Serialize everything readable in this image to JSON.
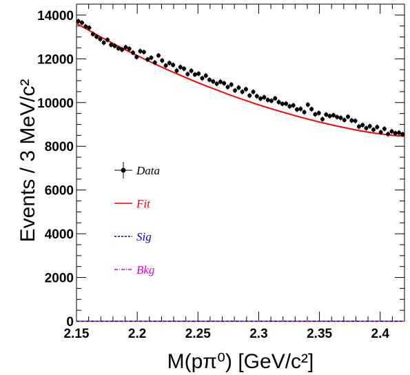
{
  "chart_data": {
    "type": "scatter",
    "xlabel": "M(pπ⁰) [GeV/c²]",
    "ylabel": "Events / 3 MeV/c²",
    "xlim": [
      2.15,
      2.42
    ],
    "ylim": [
      0,
      14500
    ],
    "x_ticks": [
      "2.15",
      "2.2",
      "2.25",
      "2.3",
      "2.35",
      "2.4"
    ],
    "y_ticks": [
      "0",
      "2000",
      "4000",
      "6000",
      "8000",
      "10000",
      "12000",
      "14000"
    ],
    "grid": false,
    "legend_position": "left-middle",
    "legend": [
      {
        "label": "Data",
        "style": "points-with-errors",
        "color": "#000000"
      },
      {
        "label": "Fit",
        "style": "solid-line",
        "color": "#ff0000"
      },
      {
        "label": "Sig",
        "style": "dashed-line",
        "color": "#0000cc"
      },
      {
        "label": "Bkg",
        "style": "dash-dot-line",
        "color": "#dd00dd"
      }
    ],
    "series": [
      {
        "name": "Data",
        "x": [
          2.1515,
          2.1545,
          2.1575,
          2.1605,
          2.1635,
          2.1665,
          2.1695,
          2.1725,
          2.1755,
          2.1785,
          2.1815,
          2.1845,
          2.1875,
          2.1905,
          2.1935,
          2.1965,
          2.1995,
          2.2025,
          2.2055,
          2.2085,
          2.2115,
          2.2145,
          2.2175,
          2.2205,
          2.2235,
          2.2265,
          2.2295,
          2.2325,
          2.2355,
          2.2385,
          2.2415,
          2.2445,
          2.2475,
          2.2505,
          2.2535,
          2.2565,
          2.2595,
          2.2625,
          2.2655,
          2.2685,
          2.2715,
          2.2745,
          2.2775,
          2.2805,
          2.2835,
          2.2865,
          2.2895,
          2.2925,
          2.2955,
          2.2985,
          2.3015,
          2.3045,
          2.3075,
          2.3105,
          2.3135,
          2.3165,
          2.3195,
          2.3225,
          2.3255,
          2.3285,
          2.3315,
          2.3345,
          2.3375,
          2.3405,
          2.3435,
          2.3465,
          2.3495,
          2.3525,
          2.3555,
          2.3585,
          2.3615,
          2.3645,
          2.3675,
          2.3705,
          2.3735,
          2.3765,
          2.3795,
          2.3825,
          2.3855,
          2.3885,
          2.3915,
          2.3945,
          2.3975,
          2.4005,
          2.4035,
          2.4065,
          2.4095,
          2.4125,
          2.4155,
          2.4185
        ],
        "y": [
          13720,
          13650,
          13480,
          13420,
          13130,
          13010,
          12900,
          12740,
          12870,
          12640,
          12590,
          12480,
          12420,
          12530,
          12460,
          12280,
          12080,
          12350,
          12310,
          11970,
          12050,
          11830,
          12150,
          11920,
          11690,
          11810,
          11720,
          11460,
          11620,
          11550,
          11300,
          11450,
          11280,
          11320,
          11110,
          11230,
          11040,
          10960,
          10860,
          10950,
          10880,
          10710,
          10820,
          10550,
          10680,
          10490,
          10610,
          10320,
          10490,
          10290,
          10180,
          10240,
          10120,
          10080,
          10190,
          10020,
          9940,
          9950,
          9830,
          9870,
          9680,
          9710,
          9560,
          9900,
          9700,
          9460,
          9520,
          9240,
          9450,
          9380,
          9420,
          9340,
          9300,
          9200,
          9350,
          9180,
          9160,
          8900,
          8970,
          8830,
          8920,
          8760,
          8880,
          8640,
          8800,
          8560,
          8680,
          8600,
          8620,
          8550
        ],
        "yerr": 120
      },
      {
        "name": "Fit",
        "x": [
          2.15,
          2.17,
          2.19,
          2.21,
          2.23,
          2.25,
          2.27,
          2.29,
          2.31,
          2.33,
          2.35,
          2.37,
          2.39,
          2.41,
          2.42
        ],
        "y": [
          13620,
          13000,
          12420,
          11880,
          11380,
          10910,
          10480,
          10080,
          9720,
          9400,
          9110,
          8860,
          8650,
          8500,
          8460
        ]
      },
      {
        "name": "Sig",
        "x": [
          2.15,
          2.42
        ],
        "y": [
          0,
          0
        ]
      },
      {
        "name": "Bkg",
        "x": [
          2.15,
          2.42
        ],
        "y": [
          0,
          0
        ]
      }
    ]
  }
}
